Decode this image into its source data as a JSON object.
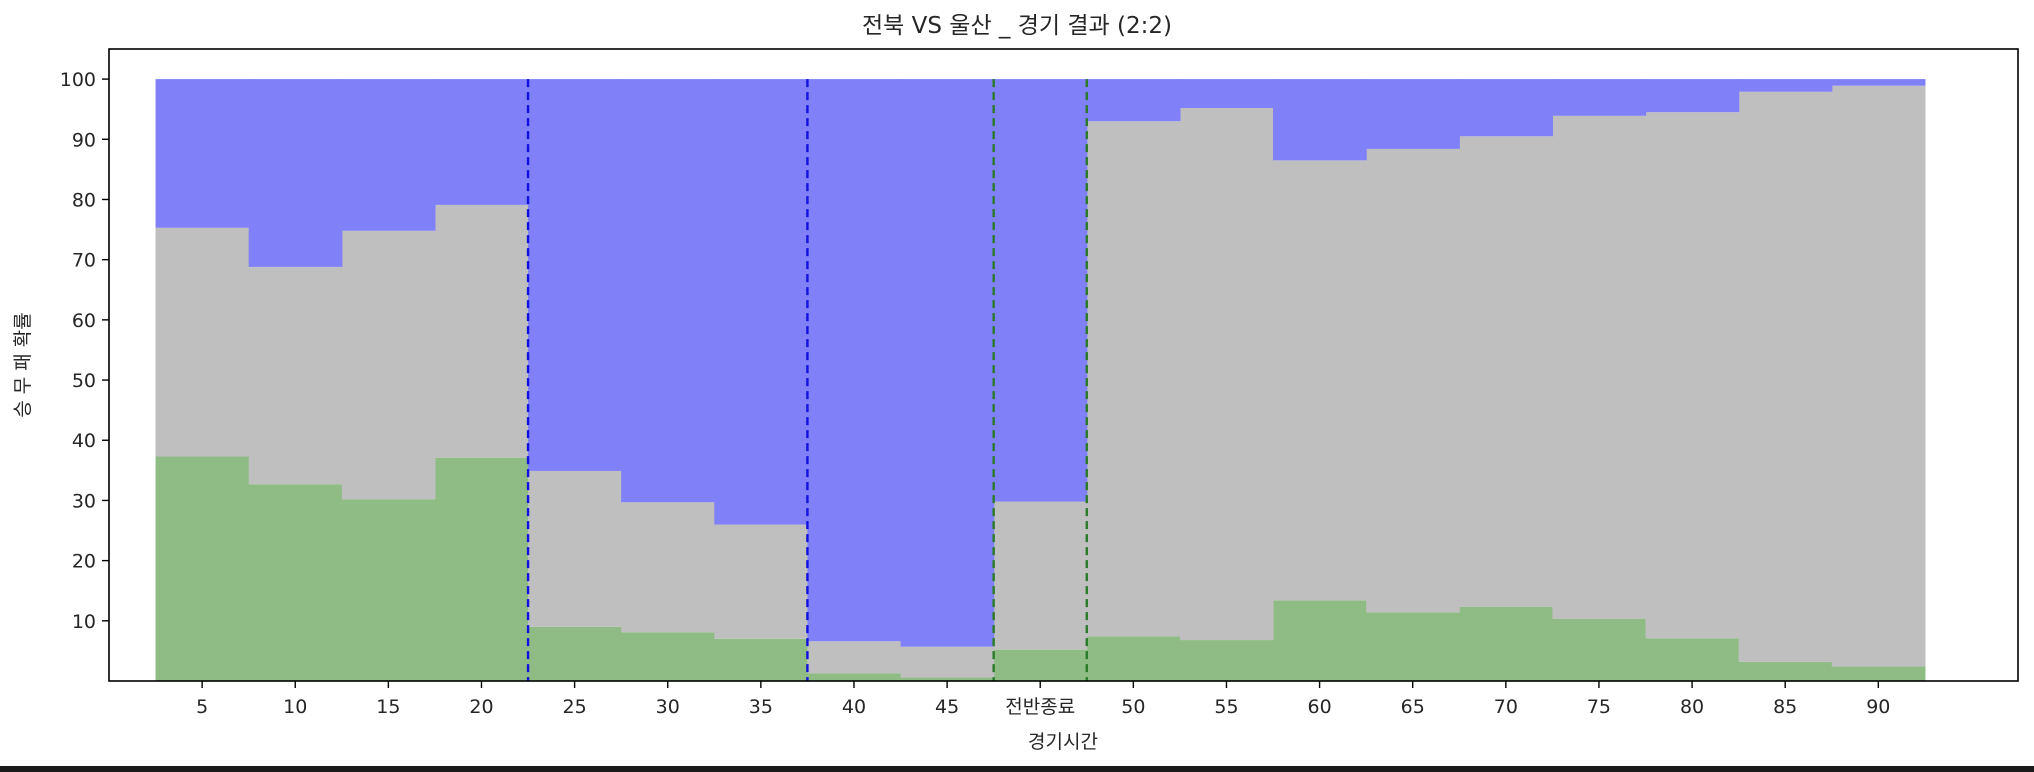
{
  "chart_data": {
    "type": "bar",
    "title": "전북 VS 울산 _ 경기 결과 (2:2)",
    "xlabel": "경기시간",
    "ylabel": "승 무 패 확률",
    "ylim": [
      0,
      105
    ],
    "yticks": [
      10,
      20,
      30,
      40,
      50,
      60,
      70,
      80,
      90,
      100
    ],
    "xlim": [
      -1.0,
      19.5
    ],
    "categories": [
      "5",
      "10",
      "15",
      "20",
      "25",
      "30",
      "35",
      "40",
      "45",
      "전반종료",
      "50",
      "55",
      "60",
      "65",
      "70",
      "75",
      "80",
      "85",
      "90"
    ],
    "stacked": true,
    "grid": false,
    "series": [
      {
        "key": "green",
        "color": "#8fbc84",
        "values": [
          37.3,
          32.7,
          30.2,
          37.1,
          9.0,
          8.1,
          7.0,
          1.3,
          0.6,
          5.2,
          7.4,
          6.8,
          13.4,
          11.4,
          12.3,
          10.3,
          7.1,
          3.2,
          2.4
        ]
      },
      {
        "key": "gray",
        "color": "#bfbfbf",
        "values": [
          38.0,
          36.1,
          44.6,
          42.0,
          25.9,
          21.6,
          19.0,
          5.3,
          5.1,
          24.6,
          85.6,
          88.4,
          73.1,
          77.0,
          78.2,
          83.6,
          87.4,
          94.7,
          96.5
        ]
      },
      {
        "key": "blue",
        "color": "#8080f8",
        "values": [
          24.7,
          31.2,
          25.2,
          20.9,
          65.1,
          70.3,
          74.0,
          93.4,
          94.3,
          70.2,
          7.0,
          4.8,
          13.5,
          11.6,
          9.5,
          6.1,
          5.5,
          2.1,
          1.1
        ]
      }
    ],
    "vlines": [
      {
        "x": 22.5,
        "xindex": 3.5,
        "color": "#1010e0",
        "style": "dashed"
      },
      {
        "x": 37.5,
        "xindex": 6.5,
        "color": "#1010e0",
        "style": "dashed"
      },
      {
        "x": 47.5,
        "xindex": 8.5,
        "color": "#2a7a2a",
        "style": "dashed"
      },
      {
        "x": 47.5,
        "xindex": 9.5,
        "color": "#2a7a2a",
        "style": "dashed"
      }
    ]
  }
}
